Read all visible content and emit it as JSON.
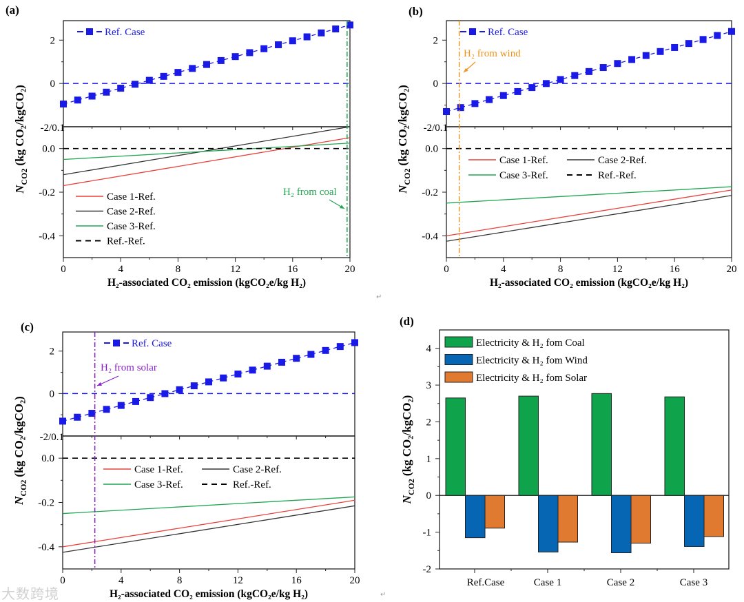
{
  "watermark": "大数跨境",
  "return_mark": "↵",
  "chart_data": [
    {
      "id": "a",
      "type": "line",
      "panel_label": "(a)",
      "xlabel": "H₂-associated CO₂ emission (kgCO₂e/kg H₂)",
      "ylabel": {
        "symbol": "N",
        "sub": "CO2",
        "unit": "(kg CO₂/kgCO₂)"
      },
      "xlim": [
        0,
        20
      ],
      "xticks": [
        "0",
        "4",
        "8",
        "12",
        "16",
        "20"
      ],
      "upper": {
        "ylim": [
          -2,
          2.9
        ],
        "yticks": [
          {
            "v": 2,
            "label": "2"
          },
          {
            "v": 0,
            "label": "0"
          }
        ],
        "series": {
          "name": "Ref. Case",
          "x0": 0,
          "y0": -0.95,
          "slope": 0.1825,
          "points": 21,
          "color": "#1a1ae6"
        }
      },
      "split_label": "-2/0.1",
      "lower": {
        "ylim": [
          -0.5,
          0.1
        ],
        "yticks": [
          {
            "v": 0,
            "label": "0.0"
          },
          {
            "v": -0.2,
            "label": "-0.2"
          },
          {
            "v": -0.4,
            "label": "-0.4"
          }
        ],
        "series": [
          {
            "name": "Case 1-Ref.",
            "y_at_0": -0.17,
            "y_at_20": 0.05,
            "color": "#e8403a"
          },
          {
            "name": "Case 2-Ref.",
            "y_at_0": -0.12,
            "y_at_20": 0.1,
            "color": "#333333"
          },
          {
            "name": "Case 3-Ref.",
            "y_at_0": -0.05,
            "y_at_20": 0.025,
            "color": "#1fa651"
          },
          {
            "name": "Ref.-Ref.",
            "y_at_0": 0,
            "y_at_20": 0,
            "color": "#000000",
            "dashed": true
          }
        ],
        "legend_layout": "column"
      },
      "annotation": {
        "text": "H₂ from coal",
        "x": 19.8,
        "color": "#1fa651"
      }
    },
    {
      "id": "b",
      "type": "line",
      "panel_label": "(b)",
      "xlabel": "H₂-associated CO₂ emission (kgCO₂e/kg H₂)",
      "ylabel": {
        "symbol": "N",
        "sub": "CO2",
        "unit": "(kg CO₂/kgCO₂)"
      },
      "xlim": [
        0,
        20
      ],
      "xticks": [
        "0",
        "4",
        "8",
        "12",
        "16",
        "20"
      ],
      "upper": {
        "ylim": [
          -2,
          2.9
        ],
        "yticks": [
          {
            "v": 2,
            "label": "2"
          },
          {
            "v": 0,
            "label": "0"
          }
        ],
        "series": {
          "name": "Ref. Case",
          "x0": 0,
          "y0": -1.3,
          "slope": 0.185,
          "points": 21,
          "color": "#1a1ae6"
        }
      },
      "split_label": "-2/0.1",
      "lower": {
        "ylim": [
          -0.5,
          0.1
        ],
        "yticks": [
          {
            "v": 0,
            "label": "0.0"
          },
          {
            "v": -0.2,
            "label": "-0.2"
          },
          {
            "v": -0.4,
            "label": "-0.4"
          }
        ],
        "series": [
          {
            "name": "Case 1-Ref.",
            "y_at_0": -0.4,
            "y_at_20": -0.19,
            "color": "#e8403a"
          },
          {
            "name": "Case 2-Ref.",
            "y_at_0": -0.425,
            "y_at_20": -0.215,
            "color": "#333333"
          },
          {
            "name": "Case 3-Ref.",
            "y_at_0": -0.25,
            "y_at_20": -0.175,
            "color": "#1fa651"
          },
          {
            "name": "Ref.-Ref.",
            "y_at_0": 0,
            "y_at_20": 0,
            "color": "#000000",
            "dashed": true
          }
        ],
        "legend_layout": "grid"
      },
      "annotation": {
        "text": "H₂ from wind",
        "x": 0.9,
        "color": "#f0931e"
      }
    },
    {
      "id": "c",
      "type": "line",
      "panel_label": "(c)",
      "xlabel": "H₂-associated CO₂ emission (kgCO₂e/kg H₂)",
      "ylabel": {
        "symbol": "N",
        "sub": "CO2",
        "unit": "(kg CO₂/kgCO₂)"
      },
      "xlim": [
        0,
        20
      ],
      "xticks": [
        "0",
        "4",
        "8",
        "12",
        "16",
        "20"
      ],
      "upper": {
        "ylim": [
          -2,
          2.9
        ],
        "yticks": [
          {
            "v": 2,
            "label": "2"
          },
          {
            "v": 0,
            "label": "0"
          }
        ],
        "series": {
          "name": "Ref. Case",
          "x0": 0,
          "y0": -1.3,
          "slope": 0.185,
          "points": 21,
          "color": "#1a1ae6"
        }
      },
      "split_label": "-2/0.1",
      "lower": {
        "ylim": [
          -0.5,
          0.1
        ],
        "yticks": [
          {
            "v": 0,
            "label": "0.0"
          },
          {
            "v": -0.2,
            "label": "-0.2"
          },
          {
            "v": -0.4,
            "label": "-0.4"
          }
        ],
        "series": [
          {
            "name": "Case 1-Ref.",
            "y_at_0": -0.4,
            "y_at_20": -0.19,
            "color": "#e8403a"
          },
          {
            "name": "Case 2-Ref.",
            "y_at_0": -0.425,
            "y_at_20": -0.215,
            "color": "#333333"
          },
          {
            "name": "Case 3-Ref.",
            "y_at_0": -0.25,
            "y_at_20": -0.175,
            "color": "#1fa651"
          },
          {
            "name": "Ref.-Ref.",
            "y_at_0": 0,
            "y_at_20": 0,
            "color": "#000000",
            "dashed": true
          }
        ],
        "legend_layout": "grid"
      },
      "annotation": {
        "text": "H₂ from solar",
        "x": 2.2,
        "color": "#8a1fc9"
      }
    },
    {
      "id": "d",
      "type": "bar",
      "panel_label": "(d)",
      "ylabel": {
        "symbol": "N",
        "sub": "CO2",
        "unit": "(kg CO₂/kgCO₂)"
      },
      "ylim": [
        -2,
        4.5
      ],
      "yticks": [
        "-2",
        "-1",
        "0",
        "1",
        "2",
        "3",
        "4"
      ],
      "categories": [
        "Ref.Case",
        "Case 1",
        "Case 2",
        "Case 3"
      ],
      "series": [
        {
          "name": "Electricity & H₂ fom Coal",
          "values": [
            2.65,
            2.7,
            2.77,
            2.68
          ],
          "color": "#0fa34c"
        },
        {
          "name": "Electricity & H₂ fom Wind",
          "values": [
            -1.15,
            -1.54,
            -1.56,
            -1.39
          ],
          "color": "#0666b3"
        },
        {
          "name": "Electricity & H₂ fom Solar",
          "values": [
            -0.89,
            -1.27,
            -1.3,
            -1.12
          ],
          "color": "#e07a30"
        }
      ],
      "legend": "top-left"
    }
  ]
}
